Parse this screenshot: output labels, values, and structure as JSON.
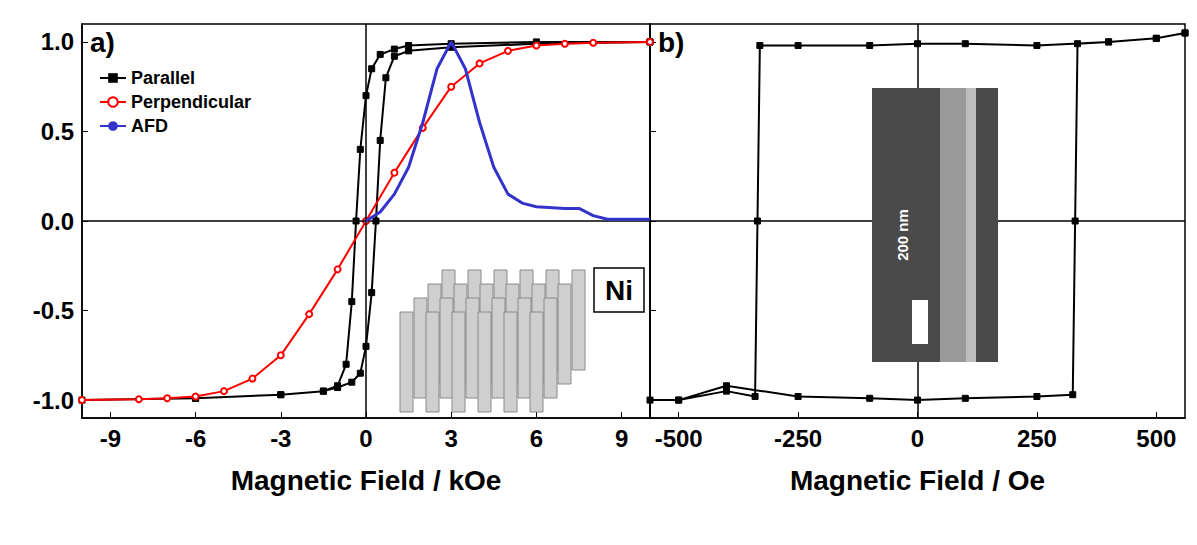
{
  "chart_data": [
    {
      "type": "line",
      "title": "a)",
      "x_label": "Magnetic Field / kOe",
      "xlim": [
        -10,
        10
      ],
      "xticks": [
        -9,
        -6,
        -3,
        0,
        3,
        6,
        9
      ],
      "ylim": [
        -1.1,
        1.1
      ],
      "yticks": [
        {
          "value": -1,
          "label": "-1.0"
        },
        {
          "value": -0.5,
          "label": "-0.5"
        },
        {
          "value": 0,
          "label": "0.0"
        },
        {
          "value": 0.5,
          "label": "0.5"
        },
        {
          "value": 1,
          "label": "1.0"
        }
      ],
      "legend": "upper left",
      "grid": false,
      "annotations": [
        "Ni"
      ],
      "series": [
        {
          "name": "Parallel",
          "color": "#000000",
          "marker": "square",
          "line_style": "solid",
          "x": [
            10,
            6,
            3,
            1.5,
            1,
            0.5,
            0.2,
            0,
            -0.2,
            -0.35,
            -0.5,
            -0.7,
            -1,
            -1.5,
            -3,
            -6,
            -10,
            -6,
            -3,
            -1.5,
            -1,
            -0.5,
            -0.2,
            0,
            0.2,
            0.35,
            0.5,
            0.7,
            1,
            1.5,
            3,
            6,
            10
          ],
          "values": [
            1,
            1,
            0.99,
            0.98,
            0.96,
            0.93,
            0.85,
            0.7,
            0.4,
            0,
            -0.45,
            -0.8,
            -0.92,
            -0.95,
            -0.97,
            -0.99,
            -1,
            -0.99,
            -0.97,
            -0.95,
            -0.93,
            -0.9,
            -0.85,
            -0.7,
            -0.4,
            0,
            0.45,
            0.8,
            0.92,
            0.95,
            0.97,
            0.99,
            1
          ]
        },
        {
          "name": "Perpendicular",
          "color": "#ff0000",
          "marker": "circle",
          "line_style": "solid",
          "x": [
            -10,
            -8,
            -7,
            -6,
            -5,
            -4,
            -3,
            -2,
            -1,
            0,
            1,
            2,
            3,
            4,
            5,
            6,
            7,
            8,
            10
          ],
          "values": [
            -1,
            -0.995,
            -0.99,
            -0.98,
            -0.95,
            -0.88,
            -0.75,
            -0.52,
            -0.27,
            0,
            0.27,
            0.52,
            0.75,
            0.88,
            0.95,
            0.98,
            0.99,
            0.995,
            1
          ]
        },
        {
          "name": "AFD",
          "color": "#3333cc",
          "marker": "none",
          "line_style": "solid",
          "x": [
            0,
            0.5,
            1,
            1.5,
            2,
            2.5,
            3,
            3.5,
            4,
            4.5,
            5,
            5.5,
            6,
            7,
            7.5,
            8,
            8.5,
            9,
            10
          ],
          "values": [
            0,
            0.05,
            0.15,
            0.3,
            0.55,
            0.85,
            1,
            0.85,
            0.55,
            0.3,
            0.15,
            0.1,
            0.08,
            0.07,
            0.07,
            0.03,
            0.01,
            0.01,
            0.01
          ]
        }
      ]
    },
    {
      "type": "line",
      "title": "b)",
      "x_label": "Magnetic Field / Oe",
      "xlim": [
        -560,
        560
      ],
      "xticks": [
        -500,
        -250,
        0,
        250,
        500
      ],
      "ylim": [
        -1.1,
        1.1
      ],
      "yticks": [
        -1,
        -0.5,
        0,
        0.5,
        1
      ],
      "tick_labels": "x",
      "grid": false,
      "annotations": [
        "200 nm"
      ],
      "series": [
        {
          "color": "#000000",
          "marker": "square",
          "line_style": "solid",
          "x": [
            560,
            500,
            400,
            250,
            100,
            0,
            -100,
            -250,
            -330,
            -335,
            -340,
            -400,
            -500,
            -560,
            -500,
            -400,
            -250,
            -100,
            0,
            100,
            250,
            325,
            330,
            335,
            400,
            500,
            560
          ],
          "values": [
            1.05,
            1.02,
            1,
            0.98,
            0.99,
            0.99,
            0.98,
            0.98,
            0.98,
            0,
            -0.98,
            -0.95,
            -1,
            -1,
            -1,
            -0.92,
            -0.98,
            -0.99,
            -1,
            -0.99,
            -0.98,
            -0.97,
            0,
            0.99,
            1,
            1.02,
            1.05
          ]
        }
      ]
    }
  ]
}
